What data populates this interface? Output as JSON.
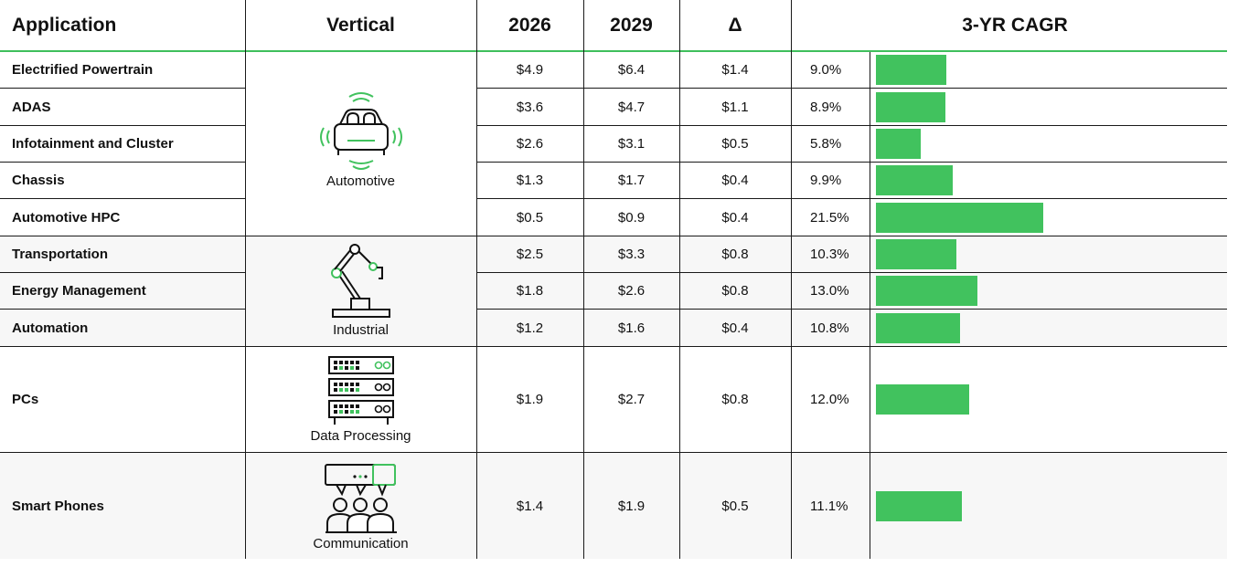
{
  "headers": {
    "application": "Application",
    "vertical": "Vertical",
    "y2026": "2026",
    "y2029": "2029",
    "delta": "Δ",
    "cagr": "3-YR CAGR"
  },
  "verticals": {
    "automotive": "Automotive",
    "industrial": "Industrial",
    "data_processing": "Data Processing",
    "communication": "Communication"
  },
  "rows": [
    {
      "application": "Electrified Powertrain",
      "v2026": "$4.9",
      "v2029": "$6.4",
      "delta": "$1.4",
      "cagr": "9.0%"
    },
    {
      "application": "ADAS",
      "v2026": "$3.6",
      "v2029": "$4.7",
      "delta": "$1.1",
      "cagr": "8.9%"
    },
    {
      "application": "Infotainment and Cluster",
      "v2026": "$2.6",
      "v2029": "$3.1",
      "delta": "$0.5",
      "cagr": "5.8%"
    },
    {
      "application": "Chassis",
      "v2026": "$1.3",
      "v2029": "$1.7",
      "delta": "$0.4",
      "cagr": "9.9%"
    },
    {
      "application": "Automotive HPC",
      "v2026": "$0.5",
      "v2029": "$0.9",
      "delta": "$0.4",
      "cagr": "21.5%"
    },
    {
      "application": "Transportation",
      "v2026": "$2.5",
      "v2029": "$3.3",
      "delta": "$0.8",
      "cagr": "10.3%"
    },
    {
      "application": "Energy Management",
      "v2026": "$1.8",
      "v2029": "$2.6",
      "delta": "$0.8",
      "cagr": "13.0%"
    },
    {
      "application": "Automation",
      "v2026": "$1.2",
      "v2029": "$1.6",
      "delta": "$0.4",
      "cagr": "10.8%"
    },
    {
      "application": "PCs",
      "v2026": "$1.9",
      "v2029": "$2.7",
      "delta": "$0.8",
      "cagr": "12.0%"
    },
    {
      "application": "Smart Phones",
      "v2026": "$1.4",
      "v2029": "$1.9",
      "delta": "$0.5",
      "cagr": "11.1%"
    }
  ],
  "chart_data": {
    "type": "bar",
    "orientation": "horizontal",
    "categories": [
      "Electrified Powertrain",
      "ADAS",
      "Infotainment and Cluster",
      "Chassis",
      "Automotive HPC",
      "Transportation",
      "Energy Management",
      "Automation",
      "PCs",
      "Smart Phones"
    ],
    "values": [
      9.0,
      8.9,
      5.8,
      9.9,
      21.5,
      10.3,
      13.0,
      10.8,
      12.0,
      11.1
    ],
    "title": "3-YR CAGR",
    "bar_color": "#41c25e"
  },
  "colors": {
    "accent": "#41c25e",
    "row_shade": "#f7f7f7",
    "rule": "#1a1a1a"
  }
}
